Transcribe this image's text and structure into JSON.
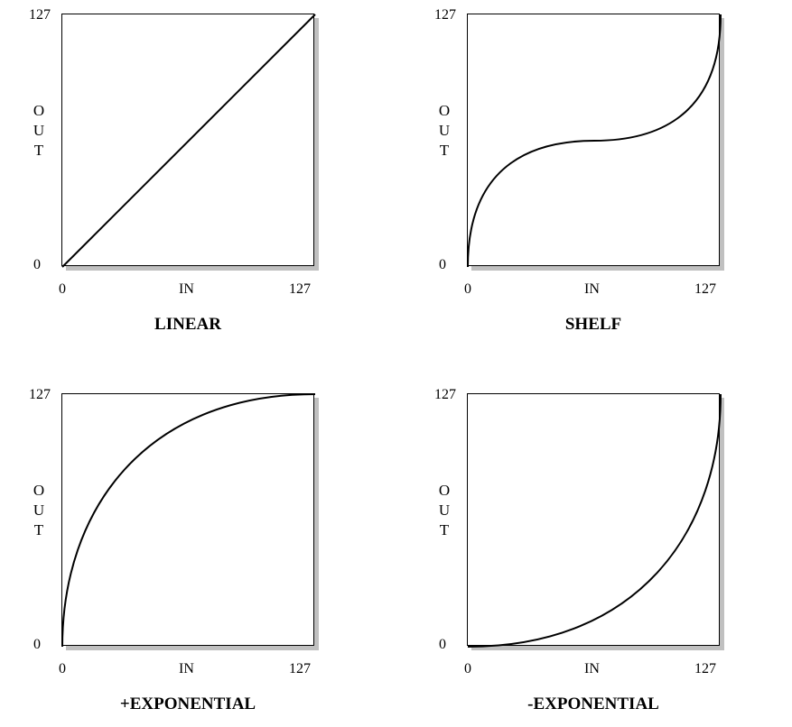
{
  "panels": [
    {
      "title": "LINEAR",
      "curve": "linear",
      "y_top": "127",
      "y_bottom": "0",
      "y_axis_letters": [
        "O",
        "U",
        "T"
      ],
      "x_left": "0",
      "x_mid": "IN",
      "x_right": "127"
    },
    {
      "title": "SHELF",
      "curve": "shelf",
      "y_top": "127",
      "y_bottom": "0",
      "y_axis_letters": [
        "O",
        "U",
        "T"
      ],
      "x_left": "0",
      "x_mid": "IN",
      "x_right": "127"
    },
    {
      "title": "+EXPONENTIAL",
      "curve": "plus-exponential",
      "y_top": "127",
      "y_bottom": "0",
      "y_axis_letters": [
        "O",
        "U",
        "T"
      ],
      "x_left": "0",
      "x_mid": "IN",
      "x_right": "127"
    },
    {
      "title": "-EXPONENTIAL",
      "curve": "minus-exponential",
      "y_top": "127",
      "y_bottom": "0",
      "y_axis_letters": [
        "O",
        "U",
        "T"
      ],
      "x_left": "0",
      "x_mid": "IN",
      "x_right": "127"
    }
  ],
  "colors": {
    "frame": "#000000",
    "shadow": "#c0c0c0",
    "curve": "#000000"
  }
}
